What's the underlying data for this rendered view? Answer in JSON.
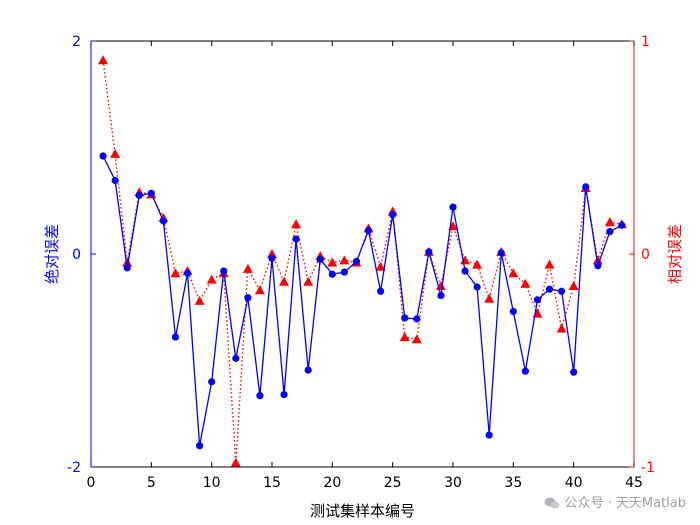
{
  "chart_data": {
    "type": "line",
    "xlabel": "测试集样本编号",
    "x": [
      1,
      2,
      3,
      4,
      5,
      6,
      7,
      8,
      9,
      10,
      11,
      12,
      13,
      14,
      15,
      16,
      17,
      18,
      19,
      20,
      21,
      22,
      23,
      24,
      25,
      26,
      27,
      28,
      29,
      30,
      31,
      32,
      33,
      34,
      35,
      36,
      37,
      38,
      39,
      40,
      41,
      42,
      43,
      44
    ],
    "xlim": [
      0,
      45
    ],
    "xticks": [
      "0",
      "5",
      "10",
      "15",
      "20",
      "25",
      "30",
      "35",
      "40",
      "45"
    ],
    "axes": {
      "left": {
        "label": "绝对误差",
        "ylim": [
          -2,
          2
        ],
        "ticks": [
          "-2",
          "0",
          "2"
        ],
        "color": "#0000ff"
      },
      "right": {
        "label": "相对误差",
        "ylim": [
          -1,
          1
        ],
        "ticks": [
          "-1",
          "0",
          "1"
        ],
        "color": "#ff0000"
      }
    },
    "series": [
      {
        "axis": "left",
        "color": "#0000ff",
        "line": "solid",
        "marker": "circle",
        "values": [
          0.92,
          0.69,
          -0.13,
          0.55,
          0.57,
          0.31,
          -0.78,
          -0.18,
          -1.8,
          -1.2,
          -0.16,
          -0.98,
          -0.41,
          -1.33,
          -0.04,
          -1.32,
          0.14,
          -1.09,
          -0.05,
          -0.19,
          -0.17,
          -0.07,
          0.22,
          -0.35,
          0.37,
          -0.6,
          -0.61,
          0.02,
          -0.39,
          0.44,
          -0.16,
          -0.31,
          -1.7,
          0.01,
          -0.54,
          -1.1,
          -0.43,
          -0.33,
          -0.35,
          -1.11,
          0.63,
          -0.11,
          0.21,
          0.27
        ]
      },
      {
        "axis": "right",
        "color": "#ff0000",
        "line": "dotted",
        "marker": "triangle",
        "values": [
          0.91,
          0.47,
          -0.04,
          0.29,
          0.28,
          0.17,
          -0.09,
          -0.08,
          -0.22,
          -0.12,
          -0.09,
          -0.98,
          -0.07,
          -0.17,
          0.0,
          -0.13,
          0.14,
          -0.13,
          -0.01,
          -0.04,
          -0.03,
          -0.04,
          0.12,
          -0.06,
          0.2,
          -0.39,
          -0.4,
          0.01,
          -0.15,
          0.13,
          -0.03,
          -0.05,
          -0.21,
          0.01,
          -0.09,
          -0.14,
          -0.28,
          -0.05,
          -0.35,
          -0.15,
          0.31,
          -0.03,
          0.15,
          0.14
        ]
      }
    ]
  },
  "watermark": {
    "text": "公众号 · 天天Matlab"
  }
}
